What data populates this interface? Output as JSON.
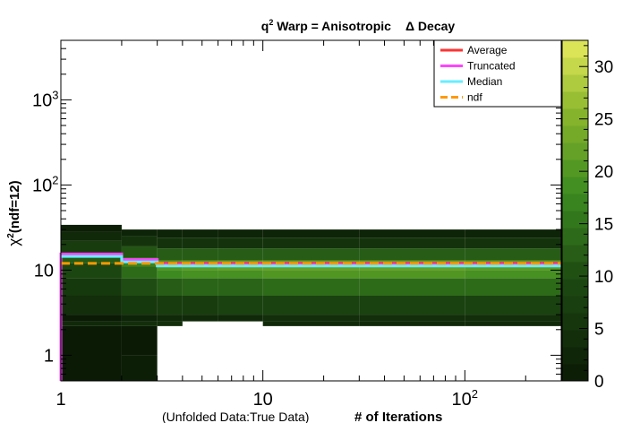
{
  "chart_data": {
    "type": "heatmap",
    "title": {
      "prefix": "q",
      "superscript": "2",
      "main": " Warp = Anisotropic",
      "suffix": "Δ Decay"
    },
    "xlabel": {
      "prefix": "(Unfolded Data:True Data)",
      "main": "# of Iterations"
    },
    "ylabel": {
      "symbol": "χ",
      "superscript": "2",
      "main": "(ndf=12)"
    },
    "x_scale": "log",
    "y_scale": "log",
    "xlim": [
      1,
      300
    ],
    "ylim": [
      0.5,
      5000
    ],
    "x_ticks": [
      {
        "value": 1,
        "base": "1",
        "exp": ""
      },
      {
        "value": 10,
        "base": "10",
        "exp": ""
      },
      {
        "value": 100,
        "base": "10",
        "exp": "2"
      }
    ],
    "y_ticks": [
      {
        "value": 1,
        "base": "1",
        "exp": ""
      },
      {
        "value": 10,
        "base": "10",
        "exp": ""
      },
      {
        "value": 100,
        "base": "10",
        "exp": "2"
      },
      {
        "value": 1000,
        "base": "10",
        "exp": "3"
      }
    ],
    "colorbar": {
      "min": 0,
      "max": 32.5,
      "ticks": [
        "0",
        "5",
        "10",
        "15",
        "20",
        "25",
        "30"
      ],
      "low_color": "#0a1a05",
      "high_color": "#e6ea5c"
    },
    "heatmap_columns": [
      {
        "x0": 1,
        "x1": 2,
        "cells": [
          [
            0.5,
            2.2,
            0
          ],
          [
            2.2,
            2.5,
            3
          ],
          [
            2.5,
            3.0,
            0
          ],
          [
            3.0,
            5.0,
            4
          ],
          [
            5.0,
            8.0,
            6
          ],
          [
            8.0,
            12.0,
            9
          ],
          [
            12.0,
            16.0,
            12
          ],
          [
            16.0,
            22.0,
            7
          ],
          [
            22.0,
            28.0,
            3
          ],
          [
            28.0,
            34.0,
            1
          ]
        ]
      },
      {
        "x0": 2,
        "x1": 3,
        "cells": [
          [
            0.5,
            1.0,
            1
          ],
          [
            1.0,
            2.2,
            0
          ],
          [
            2.2,
            2.5,
            4
          ],
          [
            2.5,
            3.0,
            2
          ],
          [
            3.0,
            5.0,
            6
          ],
          [
            5.0,
            8.0,
            10
          ],
          [
            8.0,
            11.0,
            14
          ],
          [
            11.0,
            14.0,
            17
          ],
          [
            14.0,
            19.0,
            11
          ],
          [
            19.0,
            25.0,
            5
          ],
          [
            25.0,
            30.0,
            2
          ]
        ]
      },
      {
        "x0": 3,
        "x1": 4,
        "cells": [
          [
            2.2,
            2.5,
            4
          ],
          [
            2.5,
            3.0,
            3
          ],
          [
            3.0,
            5.0,
            7
          ],
          [
            5.0,
            8.0,
            12
          ],
          [
            8.0,
            10.0,
            18
          ],
          [
            10.0,
            13.0,
            20
          ],
          [
            13.0,
            18.0,
            12
          ],
          [
            18.0,
            24.0,
            5
          ],
          [
            24.0,
            30.0,
            2
          ]
        ]
      },
      {
        "x0": 4,
        "x1": 6,
        "cells": [
          [
            2.5,
            3.0,
            3
          ],
          [
            3.0,
            5.0,
            7
          ],
          [
            5.0,
            8.0,
            13
          ],
          [
            8.0,
            10.0,
            19
          ],
          [
            10.0,
            13.0,
            21
          ],
          [
            13.0,
            18.0,
            12
          ],
          [
            18.0,
            24.0,
            5
          ],
          [
            24.0,
            30.0,
            2
          ]
        ]
      },
      {
        "x0": 6,
        "x1": 10,
        "cells": [
          [
            2.5,
            3.0,
            3
          ],
          [
            3.0,
            5.0,
            8
          ],
          [
            5.0,
            8.0,
            13
          ],
          [
            8.0,
            10.0,
            19
          ],
          [
            10.0,
            13.0,
            22
          ],
          [
            13.0,
            18.0,
            12
          ],
          [
            18.0,
            24.0,
            5
          ],
          [
            24.0,
            30.0,
            2
          ]
        ]
      },
      {
        "x0": 10,
        "x1": 30,
        "cells": [
          [
            2.2,
            2.5,
            3
          ],
          [
            2.5,
            3.0,
            4
          ],
          [
            3.0,
            5.0,
            8
          ],
          [
            5.0,
            8.0,
            14
          ],
          [
            8.0,
            10.0,
            20
          ],
          [
            10.0,
            13.0,
            22
          ],
          [
            13.0,
            18.0,
            12
          ],
          [
            18.0,
            24.0,
            5
          ],
          [
            24.0,
            30.0,
            2
          ]
        ]
      },
      {
        "x0": 30,
        "x1": 100,
        "cells": [
          [
            2.2,
            2.5,
            3
          ],
          [
            2.5,
            3.0,
            4
          ],
          [
            3.0,
            5.0,
            8
          ],
          [
            5.0,
            8.0,
            14
          ],
          [
            8.0,
            10.0,
            20
          ],
          [
            10.0,
            13.0,
            22
          ],
          [
            13.0,
            18.0,
            12
          ],
          [
            18.0,
            24.0,
            5
          ],
          [
            24.0,
            30.0,
            2
          ]
        ]
      },
      {
        "x0": 100,
        "x1": 300,
        "cells": [
          [
            2.2,
            2.5,
            3
          ],
          [
            2.5,
            3.0,
            4
          ],
          [
            3.0,
            5.0,
            8
          ],
          [
            5.0,
            8.0,
            14
          ],
          [
            8.0,
            10.0,
            19
          ],
          [
            10.0,
            13.0,
            21
          ],
          [
            13.0,
            18.0,
            12
          ],
          [
            18.0,
            24.0,
            5
          ],
          [
            24.0,
            30.0,
            2
          ]
        ]
      }
    ],
    "series": [
      {
        "name": "Average",
        "color": "#ff3333",
        "dashed": false,
        "x": [
          1,
          2,
          2,
          3,
          3,
          300
        ],
        "y": [
          15,
          15,
          13,
          13,
          12,
          12
        ]
      },
      {
        "name": "Truncated",
        "color": "#ff44ff",
        "dashed": false,
        "x": [
          1,
          1,
          2,
          2,
          3,
          3,
          300
        ],
        "y": [
          0.5,
          15.5,
          15.5,
          13.3,
          13.3,
          11.6,
          11.6
        ]
      },
      {
        "name": "Median",
        "color": "#66eeff",
        "dashed": false,
        "x": [
          1,
          2,
          2,
          3,
          3,
          300
        ],
        "y": [
          14.5,
          14.5,
          12.5,
          12.5,
          11.2,
          11.2
        ]
      },
      {
        "name": "ndf",
        "color": "#ff9900",
        "dashed": true,
        "x": [
          1,
          300
        ],
        "y": [
          12,
          12
        ]
      }
    ],
    "legend": [
      {
        "name": "Average",
        "color": "#ff3333",
        "dashed": false
      },
      {
        "name": "Truncated",
        "color": "#ff44ff",
        "dashed": false
      },
      {
        "name": "Median",
        "color": "#66eeff",
        "dashed": false
      },
      {
        "name": "ndf",
        "color": "#ff9900",
        "dashed": true
      }
    ],
    "legend_position": "top-right"
  }
}
